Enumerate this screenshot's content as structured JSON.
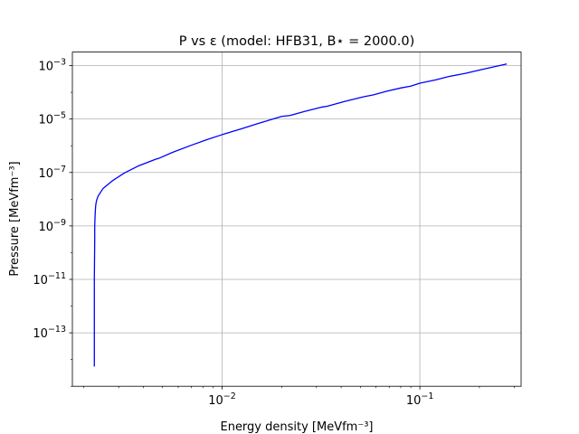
{
  "chart_data": {
    "type": "line",
    "title": "P vs ε (model: HFB31, B⋆ = 2000.0)",
    "xlabel": "Energy density [MeVfm⁻³]",
    "ylabel": "Pressure [MeVfm⁻³]",
    "xscale": "log",
    "yscale": "log",
    "xlim": [
      0.00175,
      0.325
    ],
    "ylim": [
      1e-15,
      0.0032
    ],
    "grid": true,
    "line_color": "#0000ff",
    "x_ticks": [
      {
        "value": 0.01,
        "base": "10",
        "exp": "−2"
      },
      {
        "value": 0.1,
        "base": "10",
        "exp": "−1"
      }
    ],
    "y_ticks": [
      {
        "value": 1e-13,
        "base": "10",
        "exp": "−13"
      },
      {
        "value": 1e-11,
        "base": "10",
        "exp": "−11"
      },
      {
        "value": 1e-09,
        "base": "10",
        "exp": "−9"
      },
      {
        "value": 1e-07,
        "base": "10",
        "exp": "−7"
      },
      {
        "value": 1e-05,
        "base": "10",
        "exp": "−5"
      },
      {
        "value": 0.001,
        "base": "10",
        "exp": "−3"
      }
    ],
    "series": [
      {
        "x": [
          0.00226,
          0.00226,
          0.00226,
          0.00227,
          0.00227,
          0.00228,
          0.00229,
          0.0023,
          0.00232,
          0.00236,
          0.0025,
          0.0028,
          0.0032,
          0.0038,
          0.0046,
          0.0048,
          0.0056,
          0.007,
          0.0085,
          0.01,
          0.0125,
          0.015,
          0.02,
          0.022,
          0.026,
          0.032,
          0.034,
          0.042,
          0.052,
          0.058,
          0.068,
          0.08,
          0.09,
          0.1,
          0.12,
          0.14,
          0.17,
          0.2,
          0.24,
          0.275
        ],
        "y": [
          5.5e-15,
          1e-13,
          1e-11,
          3e-10,
          1e-09,
          2.5e-09,
          4.5e-09,
          6.5e-09,
          9e-09,
          1.3e-08,
          2.5e-08,
          5e-08,
          9.5e-08,
          1.8e-07,
          3.1e-07,
          3.4e-07,
          5.6e-07,
          1.05e-06,
          1.75e-06,
          2.6e-06,
          4.3e-06,
          6.6e-06,
          1.25e-05,
          1.35e-05,
          1.9e-05,
          2.8e-05,
          3e-05,
          4.6e-05,
          6.8e-05,
          8e-05,
          0.00011,
          0.000145,
          0.00017,
          0.00022,
          0.00029,
          0.00039,
          0.00051,
          0.00068,
          0.00092,
          0.00115
        ]
      }
    ]
  }
}
